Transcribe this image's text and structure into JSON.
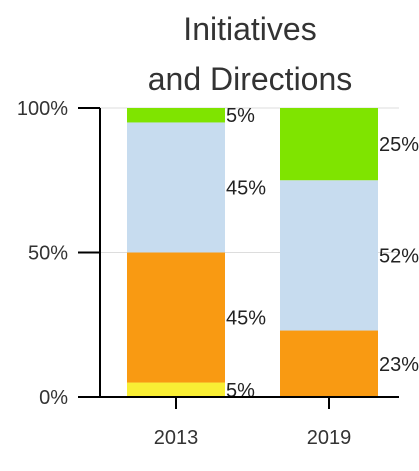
{
  "chart_data": {
    "type": "bar",
    "stacked": true,
    "title_lines": [
      "Initiatives",
      "and Directions"
    ],
    "categories": [
      "2013",
      "2019"
    ],
    "y_ticks": [
      "0%",
      "50%",
      "100%"
    ],
    "ylim": [
      0,
      100
    ],
    "grid": true,
    "legend": "none",
    "series": [
      {
        "color": "#f9ee34",
        "values": [
          5,
          0
        ],
        "labels": [
          "5%",
          ""
        ]
      },
      {
        "color": "#f99a12",
        "values": [
          45,
          23
        ],
        "labels": [
          "45%",
          "23%"
        ]
      },
      {
        "color": "#c7dcef",
        "values": [
          45,
          52
        ],
        "labels": [
          "45%",
          "52%"
        ]
      },
      {
        "color": "#7fe400",
        "values": [
          5,
          25
        ],
        "labels": [
          "5%",
          "25%"
        ]
      }
    ]
  }
}
